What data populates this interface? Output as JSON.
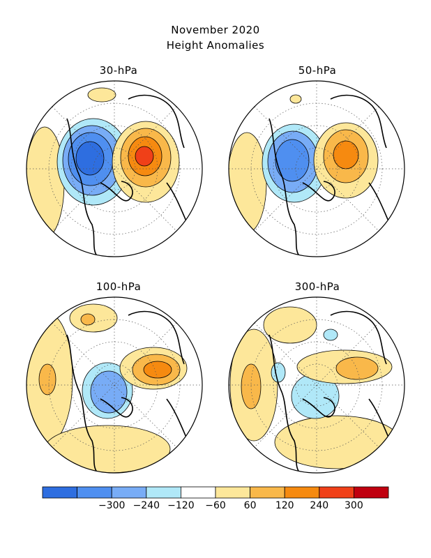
{
  "header": {
    "title": "November 2020",
    "subtitle": "Height Anomalies"
  },
  "panels": [
    {
      "label": "30-hPa"
    },
    {
      "label": "50-hPa"
    },
    {
      "label": "100-hPa"
    },
    {
      "label": "300-hPa"
    }
  ],
  "colorbar": {
    "colors": [
      "#2e6ee0",
      "#4f8ff0",
      "#78acf6",
      "#b0e8f8",
      "#ffffff",
      "#fde79a",
      "#f9b84a",
      "#f68a10",
      "#f04018",
      "#c00010"
    ],
    "labels": [
      "−300",
      "−240",
      "−120",
      "−60",
      "60",
      "120",
      "240",
      "300"
    ]
  }
}
